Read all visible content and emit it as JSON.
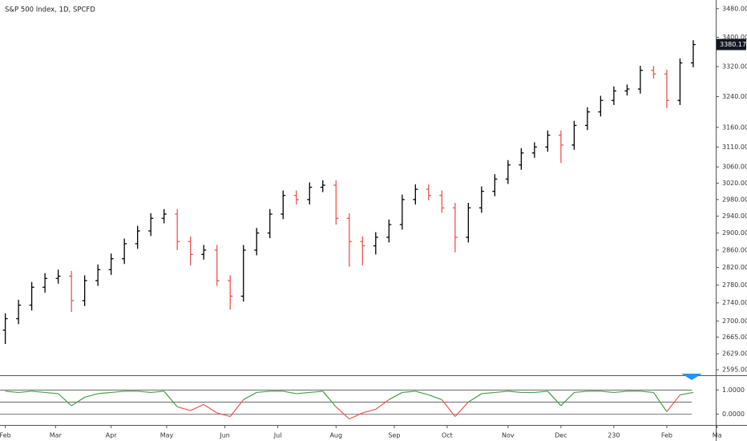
{
  "chart_data": [
    {
      "type": "ohlc",
      "title": "S&P 500 Index, 1D, SPCFD",
      "yscale": "log",
      "up_color": "#000000",
      "down_color": "#ef5350",
      "x": [
        0,
        5,
        10,
        15,
        20,
        25,
        30,
        35,
        40,
        45,
        50,
        55,
        60,
        65,
        70,
        75,
        80,
        85,
        90,
        95,
        100,
        105,
        110,
        115,
        120,
        125,
        130,
        135,
        140,
        145,
        150,
        155,
        160,
        165,
        170,
        175,
        180,
        185,
        190,
        195,
        200,
        205,
        210,
        215,
        220,
        225,
        230,
        235,
        240,
        245,
        250,
        255,
        260
      ],
      "open": [
        2680,
        2705,
        2735,
        2775,
        2795,
        2800,
        2745,
        2790,
        2815,
        2840,
        2875,
        2905,
        2935,
        2945,
        2880,
        2850,
        2860,
        2790,
        2755,
        2860,
        2900,
        2945,
        2990,
        2980,
        3010,
        3015,
        2935,
        2880,
        2870,
        2890,
        2920,
        2980,
        3005,
        2990,
        2960,
        2890,
        2960,
        3000,
        3030,
        3065,
        3095,
        3110,
        3140,
        3115,
        3165,
        3200,
        3230,
        3255,
        3260,
        3310,
        3300,
        3230,
        3330
      ],
      "high": [
        2717,
        2747,
        2787,
        2807,
        2815,
        2812,
        2802,
        2827,
        2852,
        2887,
        2917,
        2947,
        2957,
        2957,
        2892,
        2872,
        2872,
        2802,
        2872,
        2912,
        2957,
        3002,
        3002,
        3022,
        3027,
        3027,
        2947,
        2892,
        2902,
        2932,
        2992,
        3017,
        3017,
        3002,
        2972,
        2972,
        3012,
        3042,
        3077,
        3107,
        3122,
        3152,
        3152,
        3177,
        3212,
        3242,
        3267,
        3272,
        3322,
        3322,
        3312,
        3342,
        3392
      ],
      "low": [
        2650,
        2693,
        2723,
        2763,
        2783,
        2720,
        2733,
        2778,
        2803,
        2828,
        2863,
        2893,
        2923,
        2860,
        2825,
        2838,
        2778,
        2725,
        2743,
        2848,
        2888,
        2933,
        2968,
        2968,
        2998,
        2920,
        2822,
        2825,
        2850,
        2878,
        2908,
        2968,
        2978,
        2948,
        2855,
        2878,
        2948,
        2988,
        3018,
        3053,
        3083,
        3098,
        3070,
        3103,
        3153,
        3188,
        3218,
        3243,
        3248,
        3288,
        3210,
        3218,
        3318
      ],
      "close": [
        2705,
        2735,
        2775,
        2795,
        2800,
        2745,
        2790,
        2815,
        2840,
        2875,
        2905,
        2935,
        2945,
        2880,
        2850,
        2860,
        2790,
        2755,
        2860,
        2900,
        2945,
        2990,
        2980,
        3010,
        3015,
        2935,
        2880,
        2870,
        2890,
        2920,
        2980,
        3005,
        2990,
        2960,
        2890,
        2960,
        3000,
        3030,
        3065,
        3095,
        3110,
        3140,
        3115,
        3165,
        3200,
        3230,
        3255,
        3260,
        3310,
        3300,
        3230,
        3330,
        3380
      ],
      "last_price": 3380.17,
      "xlim": [
        -2,
        268.5
      ],
      "xticks": [
        {
          "value": 0,
          "label": "Feb"
        },
        {
          "value": 19,
          "label": "Mar"
        },
        {
          "value": 40,
          "label": "Apr"
        },
        {
          "value": 61,
          "label": "May"
        },
        {
          "value": 83,
          "label": "Jun"
        },
        {
          "value": 103,
          "label": "Jul"
        },
        {
          "value": 125,
          "label": "Aug"
        },
        {
          "value": 147,
          "label": "Sep"
        },
        {
          "value": 167,
          "label": "Oct"
        },
        {
          "value": 190,
          "label": "Nov"
        },
        {
          "value": 210,
          "label": "Dec"
        },
        230,
        {
          "value": 250,
          "label": "Feb"
        },
        {
          "value": 269,
          "label": "Ma"
        }
      ],
      "ylim": [
        2583.5,
        3504.6
      ],
      "yticks": [
        {
          "value": 2595,
          "label": "2595.00"
        },
        {
          "value": 2629,
          "label": "2629.00"
        },
        {
          "value": 2665,
          "label": "2665.00"
        },
        {
          "value": 2700,
          "label": "2700.00"
        },
        {
          "value": 2740,
          "label": "2740.00"
        },
        {
          "value": 2780,
          "label": "2780.00"
        },
        {
          "value": 2820,
          "label": "2820.00"
        },
        {
          "value": 2860,
          "label": "2860.00"
        },
        {
          "value": 2900,
          "label": "2900.00"
        },
        {
          "value": 2940,
          "label": "2940.00"
        },
        {
          "value": 2980,
          "label": "2980.00"
        },
        {
          "value": 3020,
          "label": "3020.00"
        },
        {
          "value": 3060,
          "label": "3060.00"
        },
        {
          "value": 3110,
          "label": "3110.00"
        },
        {
          "value": 3160,
          "label": "3160.00"
        },
        {
          "value": 3240,
          "label": "3240.00"
        },
        {
          "value": 3320,
          "label": "3320.00"
        },
        {
          "value": 3400,
          "label": "3400.00"
        },
        {
          "value": 3480,
          "label": "3480.00"
        }
      ]
    },
    {
      "type": "line",
      "high_color": "#43a047",
      "low_color": "#ef5350",
      "threshold": 0.5,
      "x": [
        0,
        5,
        10,
        15,
        20,
        25,
        30,
        35,
        40,
        45,
        50,
        55,
        60,
        65,
        70,
        75,
        80,
        85,
        90,
        95,
        100,
        105,
        110,
        115,
        120,
        125,
        130,
        135,
        140,
        145,
        150,
        155,
        160,
        165,
        170,
        175,
        180,
        185,
        190,
        195,
        200,
        205,
        210,
        215,
        220,
        225,
        230,
        235,
        240,
        245,
        250,
        255,
        260
      ],
      "values": [
        0.95,
        0.9,
        0.95,
        0.9,
        0.85,
        0.35,
        0.7,
        0.85,
        0.9,
        0.95,
        0.95,
        0.9,
        0.95,
        0.3,
        0.15,
        0.4,
        0.05,
        -0.1,
        0.6,
        0.9,
        0.95,
        0.95,
        0.85,
        0.9,
        0.95,
        0.3,
        -0.2,
        0.05,
        0.2,
        0.6,
        0.9,
        0.95,
        0.8,
        0.6,
        -0.1,
        0.5,
        0.85,
        0.9,
        0.95,
        0.9,
        0.9,
        0.95,
        0.35,
        0.9,
        0.95,
        0.95,
        0.9,
        0.95,
        0.95,
        0.9,
        0.1,
        0.8,
        0.9
      ],
      "levels": [
        1,
        0.5,
        0
      ],
      "ylim": [
        -0.45,
        1.58
      ],
      "yticks": [
        {
          "value": 1,
          "label": "1.0000"
        },
        {
          "value": 0,
          "label": "0.0000"
        }
      ]
    }
  ]
}
